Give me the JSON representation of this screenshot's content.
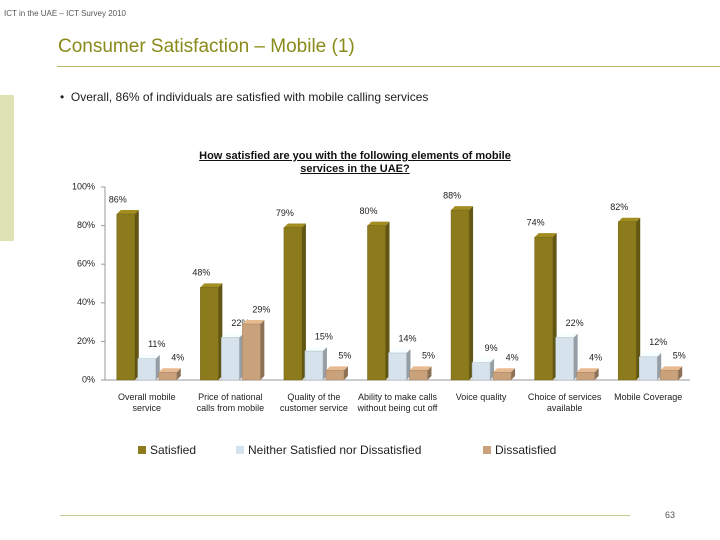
{
  "header": "ICT in the UAE – ICT Survey 2010",
  "title": "Consumer Satisfaction – Mobile (1)",
  "bullet": "Overall, 86% of individuals are satisfied with mobile calling services",
  "page_number": "63",
  "chart_data": {
    "type": "bar",
    "title": "How satisfied are you with the following elements of mobile services in the UAE?",
    "categories": [
      "Overall mobile service",
      "Price of national calls from mobile",
      "Quality of the customer service",
      "Ability to make calls without being cut off",
      "Voice quality",
      "Choice of services available",
      "Mobile Coverage"
    ],
    "series": [
      {
        "name": "Satisfied",
        "color": "#8c7b1c",
        "values": [
          86,
          48,
          79,
          80,
          88,
          74,
          82
        ],
        "value_labels": [
          "86%",
          "48%",
          "79%",
          "80%",
          "88%",
          "74%",
          "82%"
        ]
      },
      {
        "name": "Neither Satisfied nor Dissatisfied",
        "color": "#d6e2ec",
        "values": [
          11,
          22,
          15,
          14,
          9,
          22,
          12
        ],
        "value_labels": [
          "11%",
          "22%",
          "15%",
          "14%",
          "9%",
          "22%",
          "12%"
        ]
      },
      {
        "name": "Dissatisfied",
        "color": "#c9a27c",
        "values": [
          4,
          29,
          5,
          5,
          4,
          4,
          5
        ],
        "value_labels": [
          "4%",
          "29%",
          "5%",
          "5%",
          "4%",
          "4%",
          "5%"
        ]
      }
    ],
    "ylim": [
      0,
      100
    ],
    "yticks": [
      {
        "value": 0,
        "label": "0%"
      },
      {
        "value": 20,
        "label": "20%"
      },
      {
        "value": 40,
        "label": "40%"
      },
      {
        "value": 60,
        "label": "60%"
      },
      {
        "value": 80,
        "label": "80%"
      },
      {
        "value": 100,
        "label": "100%"
      }
    ],
    "legend": "bottom"
  }
}
